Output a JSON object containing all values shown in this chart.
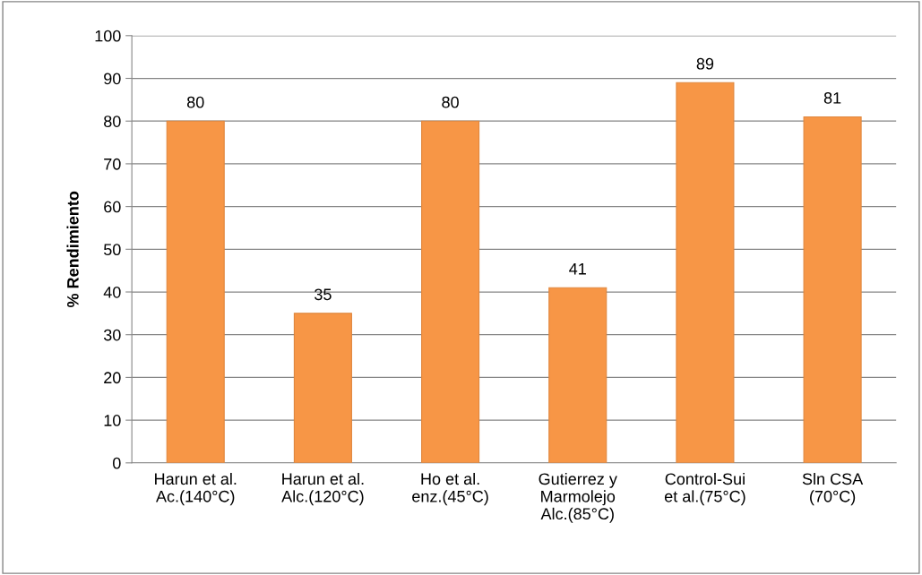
{
  "chart_data": {
    "type": "bar",
    "ylabel": "% Rendimiento",
    "categories": [
      "Harun et al.\nAc.(140°C)",
      "Harun et al.\nAlc.(120°C)",
      "Ho et al.\nenz.(45°C)",
      "Gutierrez y\nMarmolejo\nAlc.(85°C)",
      "Control-Sui\net al.(75°C)",
      "Sln CSA\n(70°C)"
    ],
    "values": [
      80,
      35,
      80,
      41,
      89,
      81
    ],
    "color": "#f79646",
    "ylim": [
      0,
      100
    ],
    "yticks": [
      0,
      10,
      20,
      30,
      40,
      50,
      60,
      70,
      80,
      90,
      100
    ],
    "grid": "y",
    "data_labels": true,
    "legend": false
  }
}
